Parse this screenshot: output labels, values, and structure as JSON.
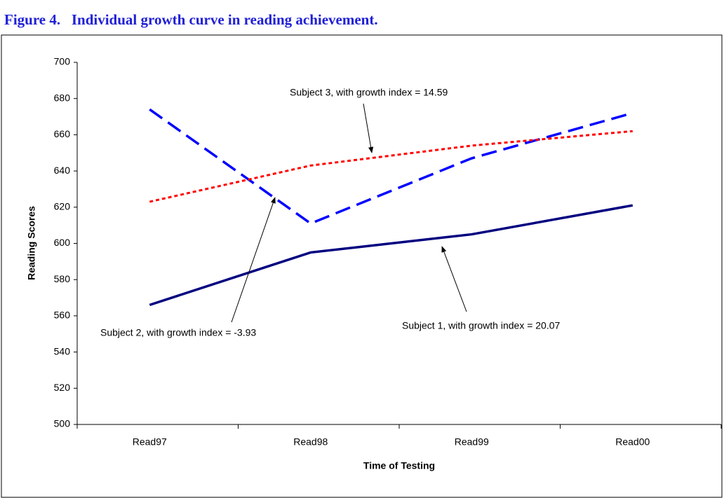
{
  "chart_data": {
    "type": "line",
    "title": "Figure 4.   Individual growth curve in reading achievement.",
    "xlabel": "Time of Testing",
    "ylabel": "Reading Scores",
    "categories": [
      "Read97",
      "Read98",
      "Read99",
      "Read00"
    ],
    "series": [
      {
        "name": "Subject 1",
        "color": "#000080",
        "style": "solid",
        "values": [
          566,
          595,
          605,
          621
        ]
      },
      {
        "name": "Subject 2",
        "color": "#0000ff",
        "style": "dashed",
        "values": [
          674,
          611,
          647,
          672
        ]
      },
      {
        "name": "Subject 3",
        "color": "#ff0000",
        "style": "dotted",
        "values": [
          623,
          643,
          654,
          662
        ]
      }
    ],
    "annotations": [
      "Subject 1, with growth index = 20.07",
      "Subject 2, with growth index = -3.93",
      "Subject 3, with growth index = 14.59"
    ],
    "ylim": [
      500,
      700
    ],
    "yticks": [
      500,
      520,
      540,
      560,
      580,
      600,
      620,
      640,
      660,
      680,
      700
    ],
    "grid": false
  }
}
